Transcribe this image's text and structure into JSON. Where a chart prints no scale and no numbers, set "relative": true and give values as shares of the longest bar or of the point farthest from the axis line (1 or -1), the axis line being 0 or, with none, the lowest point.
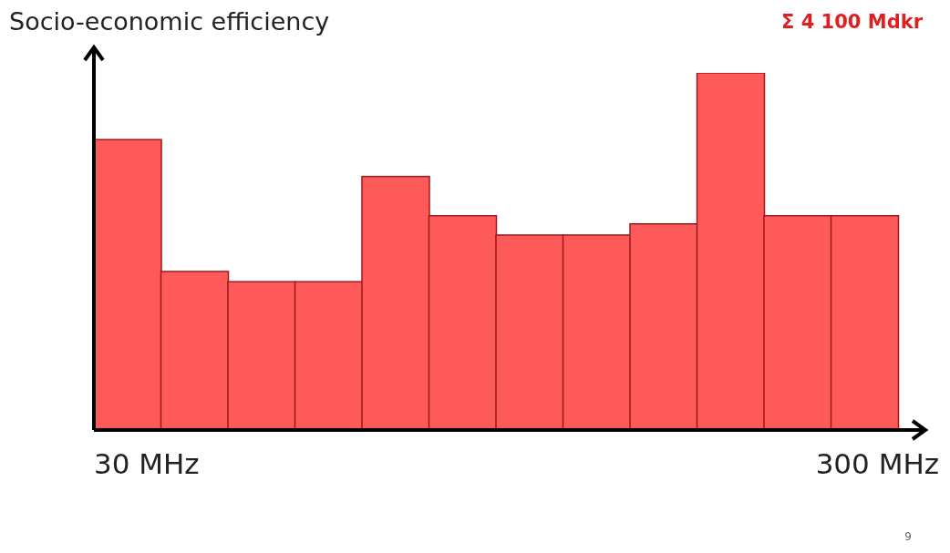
{
  "chart_data": {
    "type": "bar",
    "ylabel": "Socio-economic efficiency",
    "relative": true,
    "categories": [
      "30 MHz",
      null,
      null,
      null,
      null,
      null,
      null,
      null,
      null,
      null,
      null,
      "300 MHz"
    ],
    "values": [
      0.813,
      0.444,
      0.415,
      0.415,
      0.71,
      0.6,
      0.546,
      0.546,
      0.577,
      1,
      0.6,
      0.6
    ],
    "color": "#ff5a5a",
    "annotations": [
      "Σ 4 100 Mdkr",
      "9"
    ]
  }
}
